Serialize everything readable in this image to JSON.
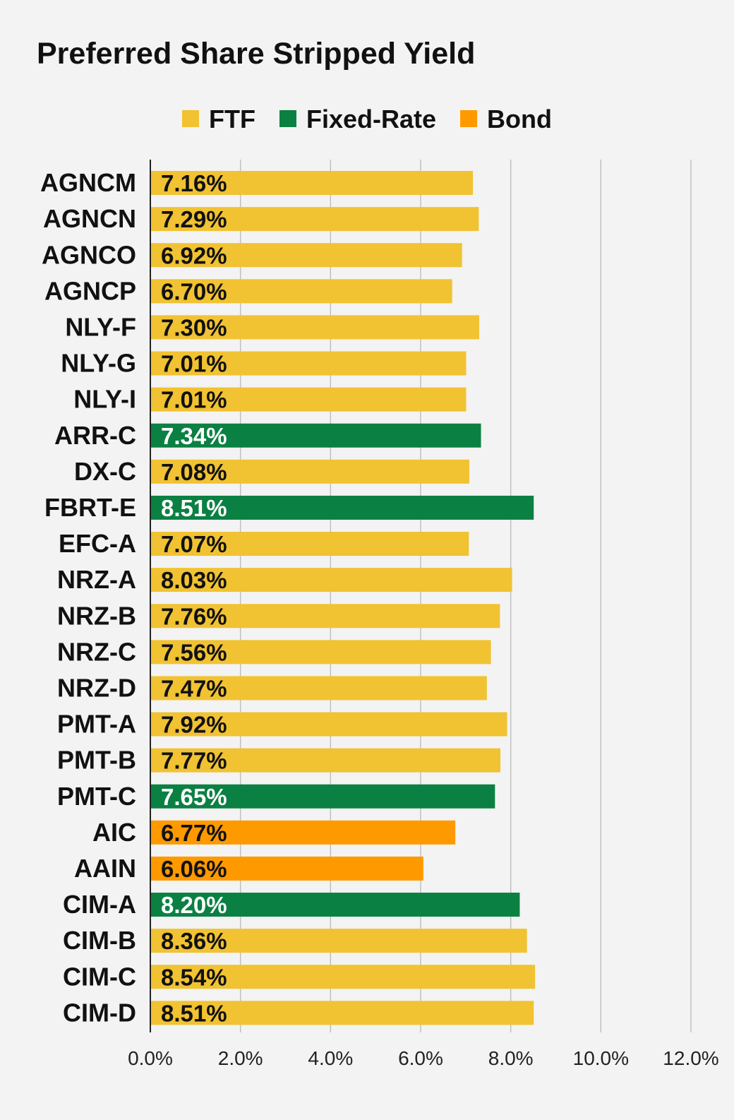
{
  "chart_data": {
    "type": "bar",
    "orientation": "horizontal",
    "title": "Preferred Share Stripped Yield",
    "xlabel": "",
    "ylabel": "",
    "xlim": [
      0,
      12
    ],
    "x_ticks": [
      "0.0%",
      "2.0%",
      "4.0%",
      "6.0%",
      "8.0%",
      "10.0%",
      "12.0%"
    ],
    "x_tick_values": [
      0,
      2,
      4,
      6,
      8,
      10,
      12
    ],
    "grid": "vertical",
    "legend_position": "top",
    "legend": [
      {
        "name": "FTF",
        "color": "#f1c232"
      },
      {
        "name": "Fixed-Rate",
        "color": "#0b8043"
      },
      {
        "name": "Bond",
        "color": "#ff9900"
      }
    ],
    "categories": [
      "AGNCM",
      "AGNCN",
      "AGNCO",
      "AGNCP",
      "NLY-F",
      "NLY-G",
      "NLY-I",
      "ARR-C",
      "DX-C",
      "FBRT-E",
      "EFC-A",
      "NRZ-A",
      "NRZ-B",
      "NRZ-C",
      "NRZ-D",
      "PMT-A",
      "PMT-B",
      "PMT-C",
      "AIC",
      "AAIN",
      "CIM-A",
      "CIM-B",
      "CIM-C",
      "CIM-D"
    ],
    "values": [
      7.16,
      7.29,
      6.92,
      6.7,
      7.3,
      7.01,
      7.01,
      7.34,
      7.08,
      8.51,
      7.07,
      8.03,
      7.76,
      7.56,
      7.47,
      7.92,
      7.77,
      7.65,
      6.77,
      6.06,
      8.2,
      8.36,
      8.54,
      8.51
    ],
    "value_labels": [
      "7.16%",
      "7.29%",
      "6.92%",
      "6.70%",
      "7.30%",
      "7.01%",
      "7.01%",
      "7.34%",
      "7.08%",
      "8.51%",
      "7.07%",
      "8.03%",
      "7.76%",
      "7.56%",
      "7.47%",
      "7.92%",
      "7.77%",
      "7.65%",
      "6.77%",
      "6.06%",
      "8.20%",
      "8.36%",
      "8.54%",
      "8.51%"
    ],
    "groups": [
      "FTF",
      "FTF",
      "FTF",
      "FTF",
      "FTF",
      "FTF",
      "FTF",
      "Fixed-Rate",
      "FTF",
      "Fixed-Rate",
      "FTF",
      "FTF",
      "FTF",
      "FTF",
      "FTF",
      "FTF",
      "FTF",
      "Fixed-Rate",
      "Bond",
      "Bond",
      "Fixed-Rate",
      "FTF",
      "FTF",
      "FTF"
    ]
  }
}
